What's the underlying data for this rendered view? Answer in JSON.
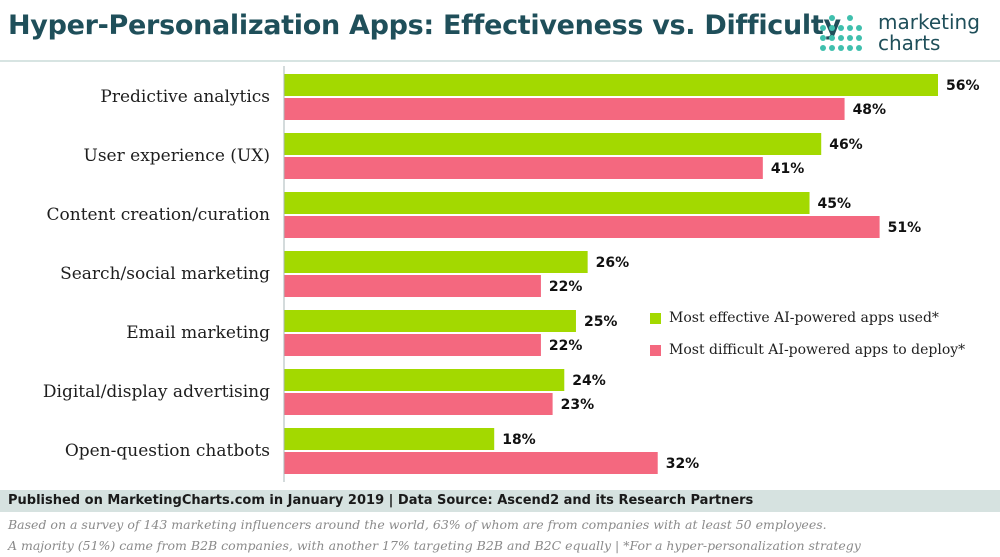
{
  "header": {
    "title": "Hyper-Personalization Apps: Effectiveness vs. Difficulty",
    "logo_line1": "marketing",
    "logo_line2": "charts"
  },
  "colors": {
    "effective": "#a3d900",
    "difficult": "#f4687f",
    "brand": "#1f4f5a",
    "logo_dots": "#3fbfad"
  },
  "legend": [
    {
      "label": "Most effective AI-powered apps used*",
      "color": "#a3d900"
    },
    {
      "label": "Most difficult AI-powered apps to deploy*",
      "color": "#f4687f"
    }
  ],
  "chart_data": {
    "type": "bar",
    "orientation": "horizontal",
    "title": "Hyper-Personalization Apps: Effectiveness vs. Difficulty",
    "categories": [
      "Predictive analytics",
      "User experience (UX)",
      "Content creation/curation",
      "Search/social marketing",
      "Email marketing",
      "Digital/display advertising",
      "Open-question chatbots"
    ],
    "series": [
      {
        "name": "Most effective AI-powered apps used*",
        "values": [
          56,
          46,
          45,
          26,
          25,
          24,
          18
        ],
        "labels": [
          "56%",
          "46%",
          "45%",
          "26%",
          "25%",
          "24%",
          "18%"
        ]
      },
      {
        "name": "Most difficult AI-powered apps to deploy*",
        "values": [
          48,
          41,
          51,
          22,
          22,
          23,
          32
        ],
        "labels": [
          "48%",
          "41%",
          "51%",
          "22%",
          "22%",
          "23%",
          "32%"
        ]
      }
    ],
    "xlim": [
      0,
      56
    ],
    "grid": false,
    "legend_position": "right"
  },
  "footer": {
    "published": "Published on MarketingCharts.com in January 2019 | Data Source: Ascend2 and its Research Partners",
    "note1": "Based on a survey of 143 marketing influencers around the world, 63% of whom are from companies with at least 50 employees.",
    "note2": "A majority (51%) came from B2B companies, with another 17% targeting B2B and B2C equally | *For a hyper-personalization strategy"
  }
}
